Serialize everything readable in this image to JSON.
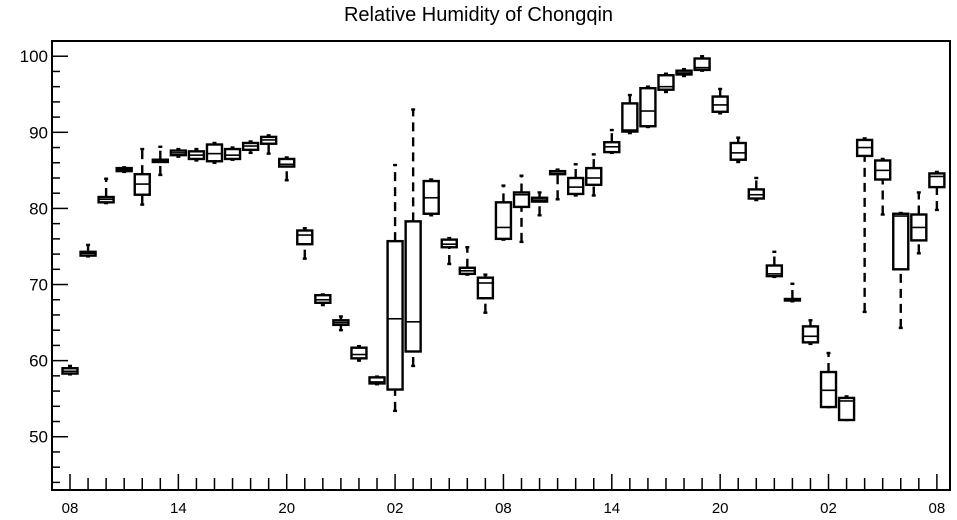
{
  "chart_data": {
    "type": "box",
    "title": "Relative Humidity of Chongqin",
    "xlabel": "",
    "ylabel": "",
    "ylim": [
      43,
      102
    ],
    "y_ticks": [
      50,
      60,
      70,
      80,
      90,
      100
    ],
    "x_tick_labels": [
      "08",
      "14",
      "20",
      "02",
      "08",
      "14",
      "20",
      "02",
      "08"
    ],
    "grid": false,
    "boxes": [
      {
        "x": 0,
        "whisker_low": 58.2,
        "q1": 58.3,
        "median": 58.6,
        "q3": 59.0,
        "whisker_high": 59.3
      },
      {
        "x": 1,
        "whisker_low": 73.7,
        "q1": 73.8,
        "median": 74.1,
        "q3": 74.3,
        "whisker_high": 75.2
      },
      {
        "x": 2,
        "whisker_low": 80.7,
        "q1": 80.8,
        "median": 81.2,
        "q3": 81.5,
        "whisker_high": 83.9
      },
      {
        "x": 3,
        "whisker_low": 84.8,
        "q1": 84.9,
        "median": 85.1,
        "q3": 85.3,
        "whisker_high": 85.4
      },
      {
        "x": 4,
        "whisker_low": 80.5,
        "q1": 81.8,
        "median": 83.2,
        "q3": 84.5,
        "whisker_high": 87.8
      },
      {
        "x": 5,
        "whisker_low": 84.4,
        "q1": 86.1,
        "median": 86.3,
        "q3": 86.4,
        "whisker_high": 88.1
      },
      {
        "x": 6,
        "whisker_low": 86.8,
        "q1": 87.0,
        "median": 87.3,
        "q3": 87.6,
        "whisker_high": 87.8
      },
      {
        "x": 7,
        "whisker_low": 86.3,
        "q1": 86.5,
        "median": 87.0,
        "q3": 87.5,
        "whisker_high": 87.8
      },
      {
        "x": 8,
        "whisker_low": 86.0,
        "q1": 86.2,
        "median": 87.2,
        "q3": 88.4,
        "whisker_high": 88.6
      },
      {
        "x": 9,
        "whisker_low": 86.4,
        "q1": 86.5,
        "median": 87.0,
        "q3": 87.8,
        "whisker_high": 88.0
      },
      {
        "x": 10,
        "whisker_low": 87.3,
        "q1": 87.7,
        "median": 88.2,
        "q3": 88.6,
        "whisker_high": 88.8
      },
      {
        "x": 11,
        "whisker_low": 87.2,
        "q1": 88.5,
        "median": 89.0,
        "q3": 89.4,
        "whisker_high": 89.6
      },
      {
        "x": 12,
        "whisker_low": 83.7,
        "q1": 85.5,
        "median": 85.8,
        "q3": 86.5,
        "whisker_high": 86.7
      },
      {
        "x": 13,
        "whisker_low": 73.4,
        "q1": 75.3,
        "median": 76.5,
        "q3": 77.1,
        "whisker_high": 77.4
      },
      {
        "x": 14,
        "whisker_low": 67.3,
        "q1": 67.6,
        "median": 68.0,
        "q3": 68.6,
        "whisker_high": 68.7
      },
      {
        "x": 15,
        "whisker_low": 64.0,
        "q1": 64.7,
        "median": 65.0,
        "q3": 65.3,
        "whisker_high": 65.8
      },
      {
        "x": 16,
        "whisker_low": 60.0,
        "q1": 60.3,
        "median": 60.8,
        "q3": 61.7,
        "whisker_high": 61.9
      },
      {
        "x": 17,
        "whisker_low": 56.9,
        "q1": 57.0,
        "median": 57.2,
        "q3": 57.8,
        "whisker_high": 57.9
      },
      {
        "x": 18,
        "whisker_low": 53.4,
        "q1": 56.2,
        "median": 65.5,
        "q3": 75.7,
        "whisker_high": 85.7
      },
      {
        "x": 19,
        "whisker_low": 59.3,
        "q1": 61.2,
        "median": 65.1,
        "q3": 78.3,
        "whisker_high": 93.0
      },
      {
        "x": 20,
        "whisker_low": 79.1,
        "q1": 79.3,
        "median": 81.4,
        "q3": 83.6,
        "whisker_high": 83.8
      },
      {
        "x": 21,
        "whisker_low": 72.7,
        "q1": 74.9,
        "median": 75.3,
        "q3": 75.9,
        "whisker_high": 76.1
      },
      {
        "x": 22,
        "whisker_low": 71.3,
        "q1": 71.4,
        "median": 71.8,
        "q3": 72.2,
        "whisker_high": 74.9
      },
      {
        "x": 23,
        "whisker_low": 66.3,
        "q1": 68.2,
        "median": 70.2,
        "q3": 70.9,
        "whisker_high": 71.3
      },
      {
        "x": 24,
        "whisker_low": 75.9,
        "q1": 76.0,
        "median": 77.5,
        "q3": 80.8,
        "whisker_high": 83.0
      },
      {
        "x": 25,
        "whisker_low": 75.6,
        "q1": 80.2,
        "median": 81.8,
        "q3": 82.1,
        "whisker_high": 84.3
      },
      {
        "x": 26,
        "whisker_low": 79.1,
        "q1": 80.9,
        "median": 81.1,
        "q3": 81.4,
        "whisker_high": 82.1
      },
      {
        "x": 27,
        "whisker_low": 81.2,
        "q1": 84.5,
        "median": 84.8,
        "q3": 84.9,
        "whisker_high": 85.1
      },
      {
        "x": 28,
        "whisker_low": 81.7,
        "q1": 81.9,
        "median": 82.8,
        "q3": 84.0,
        "whisker_high": 85.8
      },
      {
        "x": 29,
        "whisker_low": 81.7,
        "q1": 83.1,
        "median": 84.0,
        "q3": 85.3,
        "whisker_high": 87.1
      },
      {
        "x": 30,
        "whisker_low": 87.3,
        "q1": 87.4,
        "median": 88.1,
        "q3": 88.7,
        "whisker_high": 90.3
      },
      {
        "x": 31,
        "whisker_low": 89.9,
        "q1": 90.1,
        "median": 90.3,
        "q3": 93.8,
        "whisker_high": 94.9
      },
      {
        "x": 32,
        "whisker_low": 90.7,
        "q1": 90.8,
        "median": 92.8,
        "q3": 95.8,
        "whisker_high": 96.0
      },
      {
        "x": 33,
        "whisker_low": 95.3,
        "q1": 95.6,
        "median": 96.0,
        "q3": 97.5,
        "whisker_high": 97.7
      },
      {
        "x": 34,
        "whisker_low": 97.4,
        "q1": 97.6,
        "median": 97.8,
        "q3": 98.1,
        "whisker_high": 98.3
      },
      {
        "x": 35,
        "whisker_low": 98.1,
        "q1": 98.2,
        "median": 98.5,
        "q3": 99.7,
        "whisker_high": 100.0
      },
      {
        "x": 36,
        "whisker_low": 92.5,
        "q1": 92.7,
        "median": 93.6,
        "q3": 94.7,
        "whisker_high": 95.7
      },
      {
        "x": 37,
        "whisker_low": 86.1,
        "q1": 86.4,
        "median": 87.3,
        "q3": 88.6,
        "whisker_high": 89.3
      },
      {
        "x": 38,
        "whisker_low": 81.1,
        "q1": 81.3,
        "median": 81.8,
        "q3": 82.5,
        "whisker_high": 84.0
      },
      {
        "x": 39,
        "whisker_low": 71.0,
        "q1": 71.1,
        "median": 71.4,
        "q3": 72.5,
        "whisker_high": 74.3
      },
      {
        "x": 40,
        "whisker_low": 67.8,
        "q1": 67.9,
        "median": 68.0,
        "q3": 68.1,
        "whisker_high": 70.1
      },
      {
        "x": 41,
        "whisker_low": 62.2,
        "q1": 62.4,
        "median": 63.2,
        "q3": 64.5,
        "whisker_high": 65.3
      },
      {
        "x": 42,
        "whisker_low": 53.9,
        "q1": 53.9,
        "median": 56.1,
        "q3": 58.5,
        "whisker_high": 61.0
      },
      {
        "x": 43,
        "whisker_low": 52.2,
        "q1": 52.2,
        "median": 54.7,
        "q3": 55.1,
        "whisker_high": 55.3
      },
      {
        "x": 44,
        "whisker_low": 66.4,
        "q1": 86.9,
        "median": 88.0,
        "q3": 89.0,
        "whisker_high": 89.2
      },
      {
        "x": 45,
        "whisker_low": 79.2,
        "q1": 83.8,
        "median": 85.0,
        "q3": 86.3,
        "whisker_high": 86.5
      },
      {
        "x": 46,
        "whisker_low": 64.3,
        "q1": 72.0,
        "median": 79.0,
        "q3": 79.3,
        "whisker_high": 79.4
      },
      {
        "x": 47,
        "whisker_low": 74.1,
        "q1": 75.8,
        "median": 77.5,
        "q3": 79.2,
        "whisker_high": 82.1
      },
      {
        "x": 48,
        "whisker_low": 79.8,
        "q1": 82.8,
        "median": 84.2,
        "q3": 84.6,
        "whisker_high": 84.8
      }
    ]
  }
}
